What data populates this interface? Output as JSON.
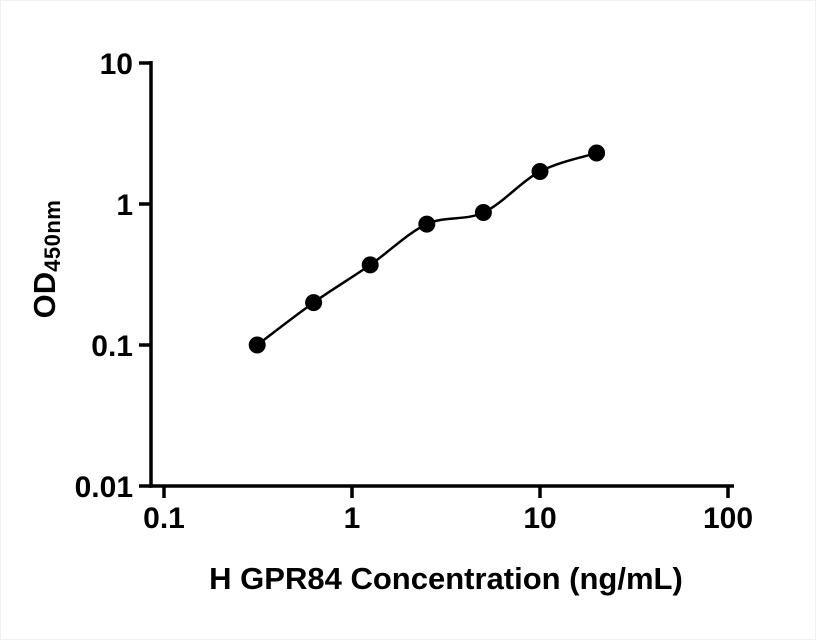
{
  "chart_data": {
    "type": "scatter",
    "title": "",
    "xlabel": "H GPR84 Concentration (ng/mL)",
    "ylabel_main": "OD",
    "ylabel_sub": "450nm",
    "xscale": "log",
    "yscale": "log",
    "xlim": [
      0.1,
      100
    ],
    "ylim": [
      0.01,
      10
    ],
    "x_ticks": [
      0.1,
      1,
      10,
      100
    ],
    "x_tick_labels": [
      "0.1",
      "1",
      "10",
      "100"
    ],
    "y_ticks": [
      0.01,
      0.1,
      1,
      10
    ],
    "y_tick_labels": [
      "0.01",
      "0.1",
      "1",
      "10"
    ],
    "grid": false,
    "legend": "none",
    "curve": "smooth-through-points",
    "marker_color": "#000000",
    "line_color": "#000000",
    "x": [
      0.313,
      0.625,
      1.25,
      2.5,
      5,
      10,
      20
    ],
    "y": [
      0.1,
      0.2,
      0.37,
      0.72,
      0.87,
      1.7,
      2.3
    ]
  }
}
